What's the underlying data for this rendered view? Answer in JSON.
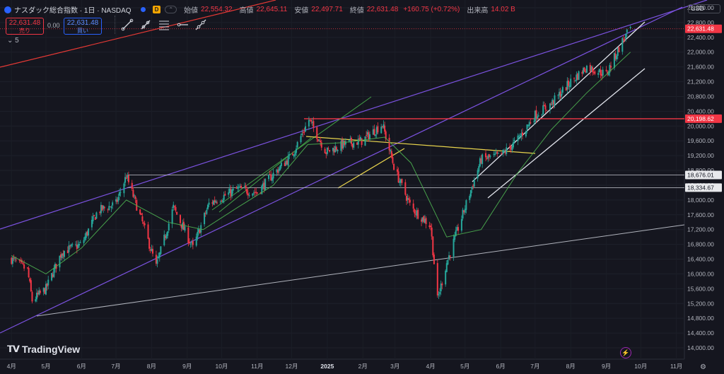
{
  "header": {
    "title": "ナスダック総合指数 · 1日 · NASDAQ",
    "badge": "D",
    "ohlc": [
      {
        "label": "始値",
        "value": "22,554.32"
      },
      {
        "label": "高値",
        "value": "22,645.11"
      },
      {
        "label": "安値",
        "value": "22,497.71"
      },
      {
        "label": "終値",
        "value": "22,631.48"
      }
    ],
    "change": "+160.75 (+0.72%)",
    "volume_label": "出来高",
    "volume_value": "14.02 B"
  },
  "trade": {
    "sell_price": "22,631.48",
    "sell_label": "売り",
    "spread": "0.00",
    "buy_price": "22,631.48",
    "buy_label": "買い"
  },
  "indicators_count": "5",
  "currency": "USD",
  "brand": "TradingView",
  "colors": {
    "background": "#15161f",
    "up": "#26a69a",
    "down": "#f23645",
    "ma": "#4caf50",
    "purple_channel": "#7b52e0",
    "green_channel": "#43a047",
    "yellow_lines": "#e8d44d",
    "white_channel": "#e0e3eb",
    "red_line": "#e53935",
    "gray_trend": "#b0b3bc"
  },
  "chart_data": {
    "type": "candlestick",
    "x_ticks": [
      "4月",
      "5月",
      "6月",
      "7月",
      "8月",
      "9月",
      "10月",
      "11月",
      "12月",
      "2025",
      "2月",
      "3月",
      "4月",
      "5月",
      "6月",
      "7月",
      "8月",
      "9月",
      "10月",
      "11月"
    ],
    "y_ticks": [
      "23,200.00",
      "22,800.00",
      "22,400.00",
      "22,000.00",
      "21,600.00",
      "21,200.00",
      "20,800.00",
      "20,400.00",
      "20,000.00",
      "19,600.00",
      "19,200.00",
      "18,800.00",
      "18,400.00",
      "18,000.00",
      "17,600.00",
      "17,200.00",
      "16,800.00",
      "16,400.00",
      "16,000.00",
      "15,600.00",
      "15,200.00",
      "14,800.00",
      "14,400.00",
      "14,000.00"
    ],
    "ylim": [
      13900,
      23700
    ],
    "price_labels": [
      {
        "value": 22631.48,
        "text": "22,631.48",
        "style": "red"
      },
      {
        "value": 20198.62,
        "text": "20,198.62",
        "style": "red"
      },
      {
        "value": 18676.01,
        "text": "18,676.01",
        "style": "white"
      },
      {
        "value": 18334.67,
        "text": "18,334.67",
        "style": "white"
      }
    ],
    "horizontal_levels": [
      20198.62,
      18676.01,
      18334.67
    ],
    "close_series": [
      {
        "date": "2024-04-01",
        "close": 16400
      },
      {
        "date": "2024-04-15",
        "close": 16100
      },
      {
        "date": "2024-04-19",
        "close": 15280
      },
      {
        "date": "2024-05-01",
        "close": 15600
      },
      {
        "date": "2024-05-15",
        "close": 16600
      },
      {
        "date": "2024-06-01",
        "close": 16800
      },
      {
        "date": "2024-06-15",
        "close": 17700
      },
      {
        "date": "2024-07-01",
        "close": 17900
      },
      {
        "date": "2024-07-10",
        "close": 18650
      },
      {
        "date": "2024-07-25",
        "close": 17300
      },
      {
        "date": "2024-08-05",
        "close": 16200
      },
      {
        "date": "2024-08-20",
        "close": 17800
      },
      {
        "date": "2024-09-06",
        "close": 16700
      },
      {
        "date": "2024-09-20",
        "close": 17900
      },
      {
        "date": "2024-10-15",
        "close": 18300
      },
      {
        "date": "2024-11-01",
        "close": 18200
      },
      {
        "date": "2024-11-15",
        "close": 18700
      },
      {
        "date": "2024-12-01",
        "close": 19200
      },
      {
        "date": "2024-12-16",
        "close": 20170
      },
      {
        "date": "2024-12-31",
        "close": 19300
      },
      {
        "date": "2025-01-15",
        "close": 19500
      },
      {
        "date": "2025-01-31",
        "close": 19600
      },
      {
        "date": "2025-02-18",
        "close": 20050
      },
      {
        "date": "2025-03-01",
        "close": 18800
      },
      {
        "date": "2025-03-15",
        "close": 17800
      },
      {
        "date": "2025-04-01",
        "close": 17300
      },
      {
        "date": "2025-04-07",
        "close": 15300
      },
      {
        "date": "2025-04-15",
        "close": 16300
      },
      {
        "date": "2025-05-01",
        "close": 17800
      },
      {
        "date": "2025-05-15",
        "close": 19100
      },
      {
        "date": "2025-06-01",
        "close": 19200
      },
      {
        "date": "2025-06-15",
        "close": 19600
      },
      {
        "date": "2025-07-01",
        "close": 20300
      },
      {
        "date": "2025-07-15",
        "close": 20600
      },
      {
        "date": "2025-08-01",
        "close": 21200
      },
      {
        "date": "2025-08-15",
        "close": 21600
      },
      {
        "date": "2025-09-01",
        "close": 21400
      },
      {
        "date": "2025-09-15",
        "close": 22300
      },
      {
        "date": "2025-09-22",
        "close": 22631
      }
    ],
    "ma_series": [
      {
        "date": "2024-04-01",
        "value": 16500
      },
      {
        "date": "2024-05-01",
        "value": 16000
      },
      {
        "date": "2024-06-01",
        "value": 16700
      },
      {
        "date": "2024-07-10",
        "value": 18000
      },
      {
        "date": "2024-08-15",
        "value": 17400
      },
      {
        "date": "2024-09-15",
        "value": 17200
      },
      {
        "date": "2024-10-15",
        "value": 17800
      },
      {
        "date": "2024-11-15",
        "value": 18400
      },
      {
        "date": "2024-12-15",
        "value": 19500
      },
      {
        "date": "2025-01-15",
        "value": 19550
      },
      {
        "date": "2025-02-20",
        "value": 19700
      },
      {
        "date": "2025-03-15",
        "value": 19000
      },
      {
        "date": "2025-04-15",
        "value": 17000
      },
      {
        "date": "2025-05-15",
        "value": 17200
      },
      {
        "date": "2025-06-15",
        "value": 18700
      },
      {
        "date": "2025-07-15",
        "value": 19900
      },
      {
        "date": "2025-08-15",
        "value": 20900
      },
      {
        "date": "2025-09-22",
        "value": 22000
      }
    ]
  }
}
